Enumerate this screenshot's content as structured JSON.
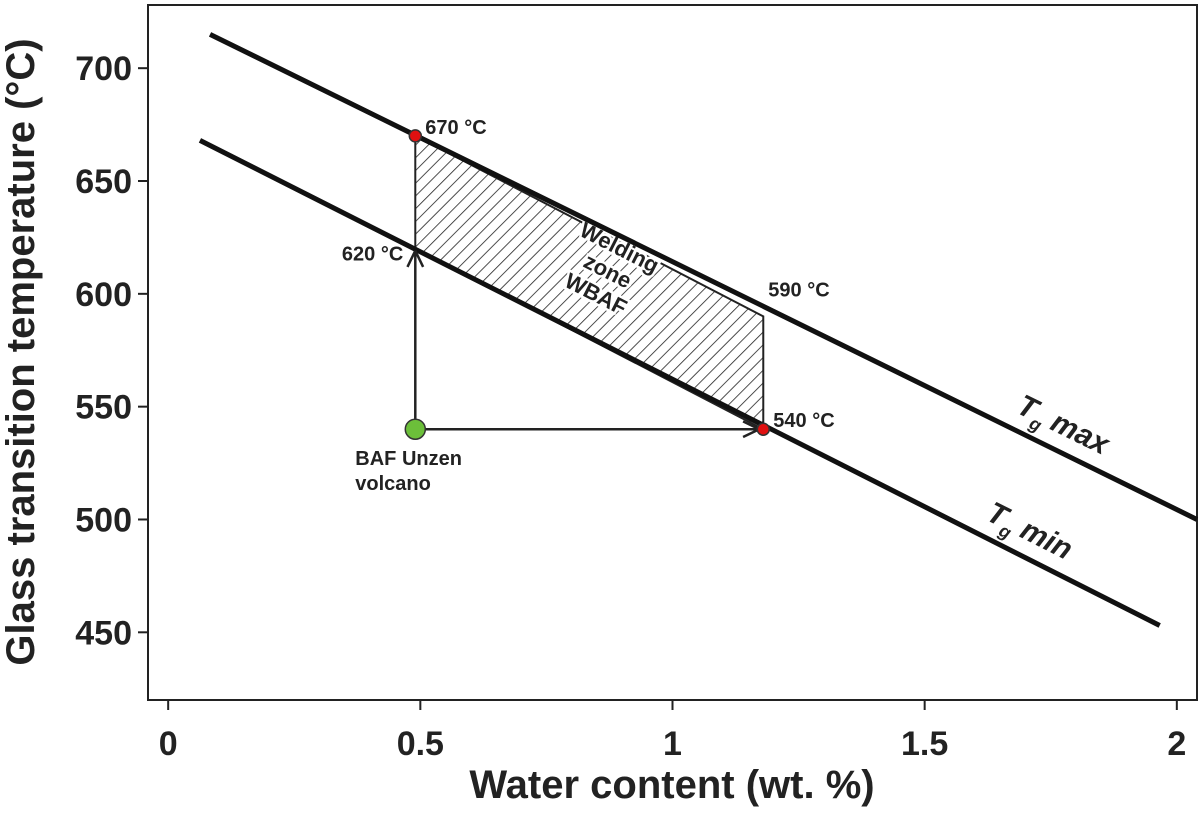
{
  "chart_data": {
    "type": "line",
    "xlabel": "Water content (wt. %)",
    "ylabel": "Glass transition temperature (°C)",
    "xlim": [
      -0.04,
      2.04
    ],
    "ylim": [
      420,
      728
    ],
    "xticks": [
      0,
      0.5,
      1,
      1.5,
      2
    ],
    "yticks": [
      450,
      500,
      550,
      600,
      650,
      700
    ],
    "series": [
      {
        "name": "Tg max",
        "color": "#111111",
        "x": [
          0.083,
          2.04
        ],
        "values": [
          715,
          500
        ]
      },
      {
        "name": "Tg min",
        "color": "#111111",
        "x": [
          0.063,
          1.966
        ],
        "values": [
          668,
          453
        ]
      }
    ],
    "zone": {
      "label_lines": [
        "Welding",
        "zone",
        "WBAF"
      ],
      "x": [
        0.49,
        1.18,
        1.18,
        0.49
      ],
      "y": [
        670,
        590,
        540,
        620
      ],
      "color": "#8b1a1a"
    },
    "points": [
      {
        "x": 0.49,
        "y": 670,
        "label": "670 °C",
        "color": "#e01010"
      },
      {
        "x": 1.18,
        "y": 540,
        "label": "540 °C",
        "color": "#e01010"
      },
      {
        "x": 0.49,
        "y": 540,
        "label_lines": [
          "BAF Unzen",
          "volcano"
        ],
        "color": "#6cbf3a"
      }
    ],
    "annotations": [
      {
        "x": 0.49,
        "y": 620,
        "label": "620 °C"
      },
      {
        "x": 1.18,
        "y": 590,
        "label": "590 °C"
      }
    ]
  }
}
